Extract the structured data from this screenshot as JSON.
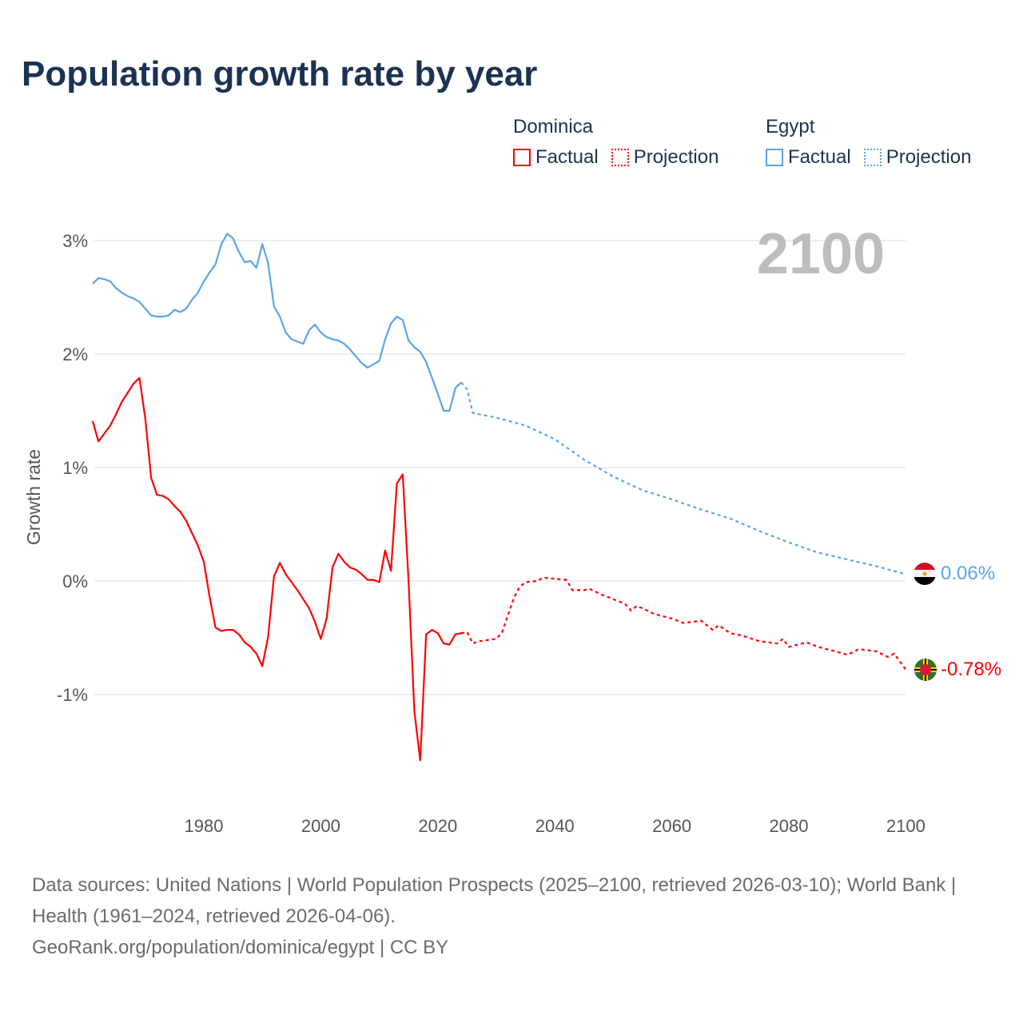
{
  "title": "Population growth rate by year",
  "legend": {
    "groups": [
      {
        "name": "Dominica",
        "factual_label": "Factual",
        "projection_label": "Projection",
        "color": "#ff0000"
      },
      {
        "name": "Egypt",
        "factual_label": "Factual",
        "projection_label": "Projection",
        "color": "#5aa5ea"
      }
    ]
  },
  "footer": {
    "sources": "Data sources: United Nations | World Population Prospects (2025–2100, retrieved 2026-03-10); World Bank | Health (1961–2024, retrieved 2026-04-06).",
    "credit": "GeoRank.org/population/dominica/egypt | CC BY"
  },
  "chart_data": {
    "type": "line",
    "title": "Population growth rate by year",
    "xlabel": "",
    "ylabel": "Growth rate",
    "xlim": [
      1961,
      2100
    ],
    "ylim": [
      -1.8,
      3.2
    ],
    "current_year_label": "2100",
    "x_ticks": [
      1980,
      2000,
      2020,
      2040,
      2060,
      2080,
      2100
    ],
    "y_ticks": [
      {
        "v": 3,
        "label": "3%"
      },
      {
        "v": 2,
        "label": "2%"
      },
      {
        "v": 1,
        "label": "1%"
      },
      {
        "v": 0,
        "label": "0%"
      },
      {
        "v": -1,
        "label": "-1%"
      }
    ],
    "grid": true,
    "series": [
      {
        "name": "Egypt",
        "color": "#5aa5ea",
        "flag": "egypt-flag",
        "end_label": "0.06%",
        "factual": {
          "x": [
            1961,
            1962,
            1963,
            1964,
            1965,
            1966,
            1967,
            1968,
            1969,
            1970,
            1971,
            1972,
            1973,
            1974,
            1975,
            1976,
            1977,
            1978,
            1979,
            1980,
            1981,
            1982,
            1983,
            1984,
            1985,
            1986,
            1987,
            1988,
            1989,
            1990,
            1991,
            1992,
            1993,
            1994,
            1995,
            1996,
            1997,
            1998,
            1999,
            2000,
            2001,
            2002,
            2003,
            2004,
            2005,
            2006,
            2007,
            2008,
            2009,
            2010,
            2011,
            2012,
            2013,
            2014,
            2015,
            2016,
            2017,
            2018,
            2019,
            2020,
            2021,
            2022,
            2023,
            2024
          ],
          "y": [
            2.62,
            2.67,
            2.66,
            2.64,
            2.58,
            2.54,
            2.51,
            2.49,
            2.46,
            2.4,
            2.34,
            2.33,
            2.33,
            2.34,
            2.39,
            2.37,
            2.4,
            2.48,
            2.54,
            2.64,
            2.72,
            2.79,
            2.97,
            3.06,
            3.02,
            2.9,
            2.81,
            2.82,
            2.76,
            2.97,
            2.8,
            2.42,
            2.33,
            2.19,
            2.13,
            2.11,
            2.09,
            2.21,
            2.26,
            2.19,
            2.15,
            2.13,
            2.12,
            2.09,
            2.04,
            1.98,
            1.92,
            1.88,
            1.91,
            1.94,
            2.13,
            2.27,
            2.33,
            2.3,
            2.12,
            2.06,
            2.02,
            1.93,
            1.79,
            1.65,
            1.5,
            1.5,
            1.7,
            1.75
          ]
        },
        "projection": {
          "x": [
            2024,
            2025,
            2026,
            2030,
            2035,
            2040,
            2045,
            2050,
            2055,
            2060,
            2065,
            2070,
            2075,
            2080,
            2085,
            2090,
            2095,
            2100
          ],
          "y": [
            1.75,
            1.69,
            1.48,
            1.44,
            1.37,
            1.25,
            1.07,
            0.92,
            0.8,
            0.72,
            0.63,
            0.55,
            0.44,
            0.34,
            0.25,
            0.19,
            0.13,
            0.06
          ]
        }
      },
      {
        "name": "Dominica",
        "color": "#ff0000",
        "flag": "dominica-flag",
        "end_label": "-0.78%",
        "factual": {
          "x": [
            1961,
            1962,
            1963,
            1964,
            1965,
            1966,
            1967,
            1968,
            1969,
            1970,
            1971,
            1972,
            1973,
            1974,
            1975,
            1976,
            1977,
            1978,
            1979,
            1980,
            1981,
            1982,
            1983,
            1984,
            1985,
            1986,
            1987,
            1988,
            1989,
            1990,
            1991,
            1992,
            1993,
            1994,
            1995,
            1996,
            1997,
            1998,
            1999,
            2000,
            2001,
            2002,
            2003,
            2004,
            2005,
            2006,
            2007,
            2008,
            2009,
            2010,
            2011,
            2012,
            2013,
            2014,
            2015,
            2016,
            2017,
            2018,
            2019,
            2020,
            2021,
            2022,
            2023,
            2024
          ],
          "y": [
            1.41,
            1.23,
            1.3,
            1.37,
            1.47,
            1.58,
            1.66,
            1.74,
            1.79,
            1.43,
            0.91,
            0.76,
            0.75,
            0.72,
            0.66,
            0.61,
            0.53,
            0.42,
            0.31,
            0.17,
            -0.14,
            -0.41,
            -0.44,
            -0.43,
            -0.43,
            -0.47,
            -0.54,
            -0.58,
            -0.64,
            -0.75,
            -0.49,
            0.04,
            0.16,
            0.06,
            -0.01,
            -0.08,
            -0.16,
            -0.24,
            -0.36,
            -0.51,
            -0.33,
            0.12,
            0.24,
            0.17,
            0.12,
            0.1,
            0.06,
            0.01,
            0.01,
            -0.01,
            0.27,
            0.09,
            0.86,
            0.94,
            0.0,
            -1.15,
            -1.58,
            -0.47,
            -0.43,
            -0.46,
            -0.55,
            -0.56,
            -0.47,
            -0.46
          ]
        },
        "projection": {
          "x": [
            2024,
            2025,
            2026,
            2027,
            2030,
            2031,
            2032,
            2033,
            2034,
            2035,
            2037,
            2038,
            2040,
            2042,
            2043,
            2045,
            2046,
            2048,
            2050,
            2052,
            2053,
            2054,
            2055,
            2057,
            2060,
            2062,
            2065,
            2067,
            2068,
            2070,
            2072,
            2075,
            2078,
            2079,
            2080,
            2083,
            2085,
            2088,
            2090,
            2092,
            2095,
            2097,
            2098,
            2100
          ],
          "y": [
            -0.46,
            -0.45,
            -0.55,
            -0.53,
            -0.51,
            -0.45,
            -0.3,
            -0.15,
            -0.05,
            -0.01,
            0.0,
            0.03,
            0.02,
            0.01,
            -0.08,
            -0.08,
            -0.07,
            -0.12,
            -0.16,
            -0.2,
            -0.26,
            -0.22,
            -0.24,
            -0.29,
            -0.33,
            -0.37,
            -0.35,
            -0.43,
            -0.39,
            -0.46,
            -0.48,
            -0.53,
            -0.55,
            -0.51,
            -0.58,
            -0.54,
            -0.58,
            -0.62,
            -0.65,
            -0.6,
            -0.62,
            -0.67,
            -0.64,
            -0.78
          ]
        }
      }
    ]
  }
}
